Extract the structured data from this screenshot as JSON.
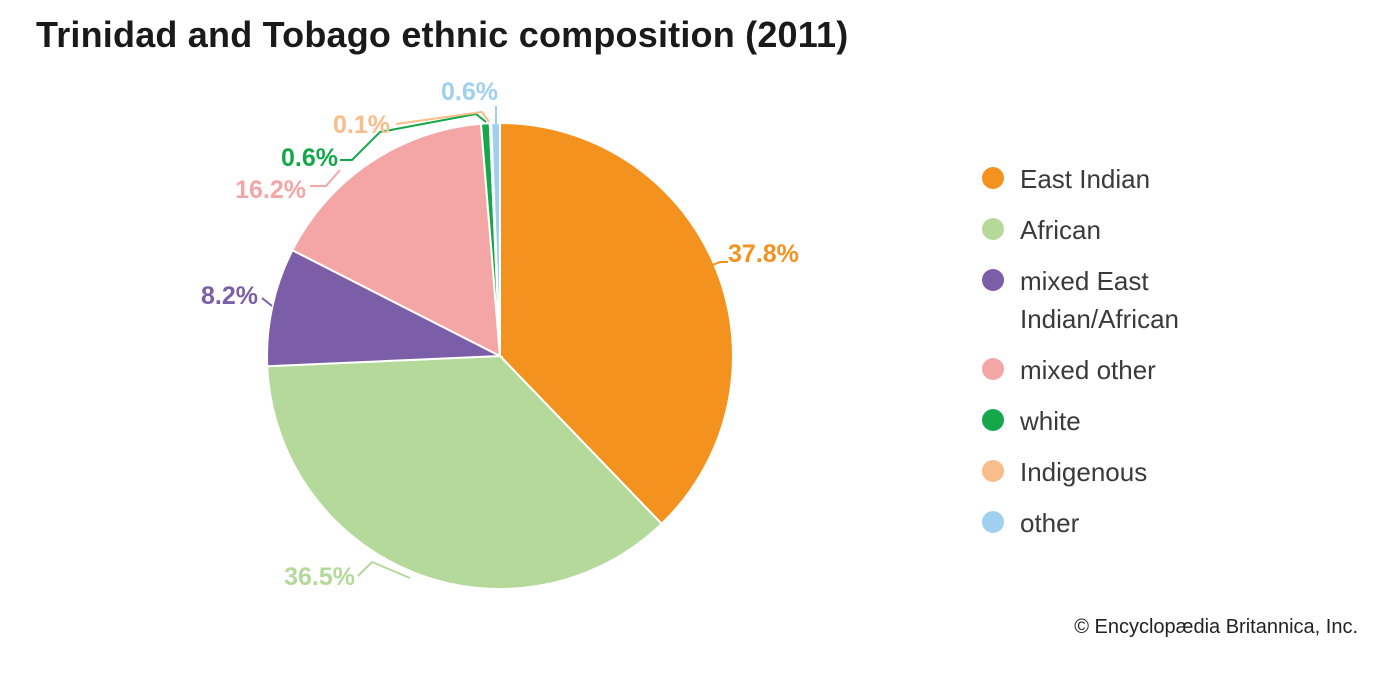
{
  "title": "Trinidad and Tobago ethnic composition (2011)",
  "credit": "© Encyclopædia Britannica, Inc.",
  "chart_data": {
    "type": "pie",
    "title": "Trinidad and Tobago ethnic composition (2011)",
    "legend_position": "right",
    "slices": [
      {
        "name": "East Indian",
        "value": 37.8,
        "label": "37.8%",
        "color": "#f4921f"
      },
      {
        "name": "African",
        "value": 36.5,
        "label": "36.5%",
        "color": "#b4d99b"
      },
      {
        "name": "mixed East Indian/African",
        "value": 8.2,
        "label": "8.2%",
        "color": "#7b5ea7"
      },
      {
        "name": "mixed other",
        "value": 16.2,
        "label": "16.2%",
        "color": "#f4a6a6"
      },
      {
        "name": "white",
        "value": 0.6,
        "label": "0.6%",
        "color": "#15a84a"
      },
      {
        "name": "Indigenous",
        "value": 0.1,
        "label": "0.1%",
        "color": "#f9bd8a"
      },
      {
        "name": "other",
        "value": 0.6,
        "label": "0.6%",
        "color": "#9fd0ee"
      }
    ]
  }
}
